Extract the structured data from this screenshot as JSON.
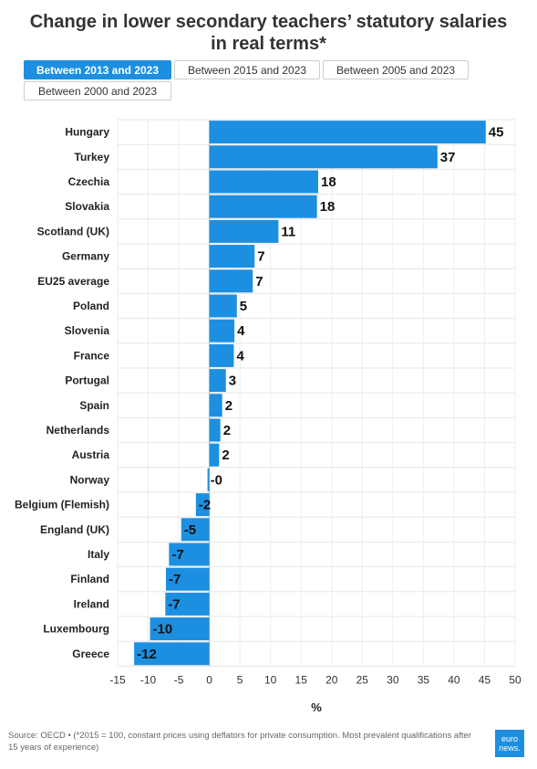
{
  "title_line1": "Change in lower secondary teachers’ statutory salaries",
  "title_line2": "in real terms*",
  "tabs": [
    {
      "label": "Between 2013 and 2023",
      "active": true
    },
    {
      "label": "Between 2015 and 2023",
      "active": false
    },
    {
      "label": "Between 2005 and 2023",
      "active": false
    },
    {
      "label": "Between 2000 and 2023",
      "active": false
    }
  ],
  "source": "Source: OECD • (*2015 = 100, constant prices using deflators for private consumption. Most prevalent qualifications after 15 years of experience)",
  "logo": {
    "line1": "euro",
    "line2": "news."
  },
  "colors": {
    "bar": "#1d8fe0",
    "accent": "#1d8fe0"
  },
  "chart_data": {
    "type": "bar",
    "orientation": "horizontal",
    "categories": [
      "Hungary",
      "Turkey",
      "Czechia",
      "Slovakia",
      "Scotland (UK)",
      "Germany",
      "EU25 average",
      "Poland",
      "Slovenia",
      "France",
      "Portugal",
      "Spain",
      "Netherlands",
      "Austria",
      "Norway",
      "Belgium (Flemish)",
      "England (UK)",
      "Italy",
      "Finland",
      "Ireland",
      "Luxembourg",
      "Greece"
    ],
    "values": [
      45.2,
      37.3,
      17.8,
      17.6,
      11.3,
      7.4,
      7.1,
      4.5,
      4.1,
      4.0,
      2.7,
      2.1,
      1.8,
      1.6,
      -0.3,
      -2.2,
      -4.6,
      -6.6,
      -7.1,
      -7.2,
      -9.7,
      -12.3
    ],
    "value_labels": [
      "45",
      "37",
      "18",
      "18",
      "11",
      "7",
      "7",
      "5",
      "4",
      "4",
      "3",
      "2",
      "2",
      "2",
      "-0",
      "-2",
      "-5",
      "-7",
      "-7",
      "-7",
      "-10",
      "-12"
    ],
    "xlim": [
      -15,
      50
    ],
    "xticks": [
      -15,
      -10,
      -5,
      0,
      5,
      10,
      15,
      20,
      25,
      30,
      35,
      40,
      45,
      50
    ],
    "xlabel": "%",
    "grid": true
  }
}
